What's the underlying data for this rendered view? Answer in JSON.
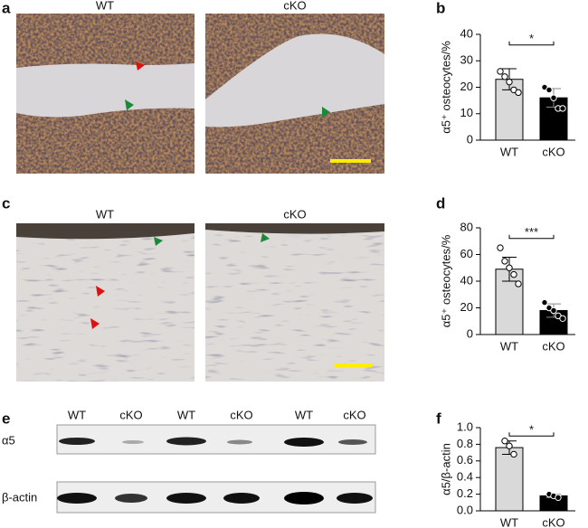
{
  "figure": {
    "letters": [
      "a",
      "b",
      "c",
      "d",
      "e",
      "f"
    ],
    "micrograph_labels": [
      [
        "WT",
        "cKO"
      ],
      [
        "WT",
        "cKO"
      ]
    ],
    "blot": {
      "lanes": [
        "WT",
        "cKO",
        "WT",
        "cKO",
        "WT",
        "cKO"
      ],
      "rows": [
        "α5",
        "β-actin"
      ]
    }
  },
  "chart_data": [
    {
      "type": "bar",
      "ylabel": "α5⁺ osteocytes/%",
      "categories": [
        "WT",
        "cKO"
      ],
      "values": [
        23,
        16
      ],
      "errors": [
        4,
        3.5
      ],
      "points": [
        [
          26,
          24,
          22,
          19,
          18
        ],
        [
          20,
          19,
          16,
          12,
          12
        ]
      ],
      "colors": [
        "#d9d9d9",
        "#000000"
      ],
      "significance": "*",
      "ylim": [
        0,
        40
      ],
      "yticks": [
        0,
        10,
        20,
        30,
        40
      ]
    },
    {
      "type": "bar",
      "ylabel": "α5⁺ osteocytes/%",
      "categories": [
        "WT",
        "cKO"
      ],
      "values": [
        49,
        18
      ],
      "errors": [
        9,
        5
      ],
      "points": [
        [
          65,
          55,
          50,
          45,
          38
        ],
        [
          24,
          20,
          18,
          14,
          12
        ]
      ],
      "colors": [
        "#d9d9d9",
        "#000000"
      ],
      "significance": "***",
      "ylim": [
        0,
        80
      ],
      "yticks": [
        0,
        20,
        40,
        60,
        80
      ]
    },
    {
      "type": "bar",
      "ylabel": "α5/β-actin",
      "categories": [
        "WT",
        "cKO"
      ],
      "values": [
        0.76,
        0.18
      ],
      "errors": [
        0.08,
        0.02
      ],
      "points": [
        [
          0.84,
          0.78,
          0.68
        ],
        [
          0.2,
          0.18,
          0.16
        ]
      ],
      "colors": [
        "#d9d9d9",
        "#000000"
      ],
      "significance": "*",
      "ylim": [
        0,
        1
      ],
      "yticks": [
        {
          "value": 0,
          "label": "0.0"
        },
        0.2,
        0.4,
        0.6,
        0.8,
        {
          "value": 1,
          "label": "1.0"
        }
      ]
    }
  ]
}
